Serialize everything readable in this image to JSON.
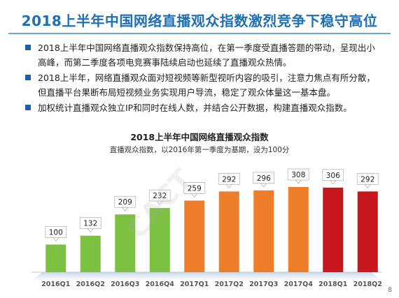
{
  "title": "2018上半年中国网络直播观众指数激烈竞争下稳守高位",
  "bullets": [
    "2018上半年中国网络直播观众指数保持高位，在第一季度受直播答题的带动，呈现出小高峰，而第二季度各项电竞赛事陆续启动也延续了直播观众热情。",
    "2018上半年，网络直播观众面对短视频等新型视听内容的吸引，注意力焦点有所分散，但直播平台果断布局短视频业务实现用户导流，稳定了观众体量这一基本盘。",
    "加权统计直播观众独立IP和同时在线人数，并结合公开数据，构建直播观众指数。"
  ],
  "page_number": "8",
  "watermark": "CACT",
  "chart_data": {
    "type": "bar",
    "title": "2018上半年中国网络直播观众指数",
    "subtitle": "直播观众指数，以2016年第一季度为基期，设为100分",
    "categories": [
      "2016Q1",
      "2016Q2",
      "2016Q3",
      "2016Q4",
      "2017Q1",
      "2017Q2",
      "2017Q3",
      "2017Q4",
      "2018Q1",
      "2018Q2"
    ],
    "values": [
      100,
      132,
      209,
      232,
      259,
      292,
      296,
      308,
      306,
      292
    ],
    "bar_colors": [
      "#7cc142",
      "#7cc142",
      "#7cc142",
      "#7cc142",
      "#ee7d2a",
      "#ee7d2a",
      "#ee7d2a",
      "#ee7d2a",
      "#c8161d",
      "#c8161d"
    ],
    "ylim": [
      0,
      330
    ],
    "grid": false
  }
}
